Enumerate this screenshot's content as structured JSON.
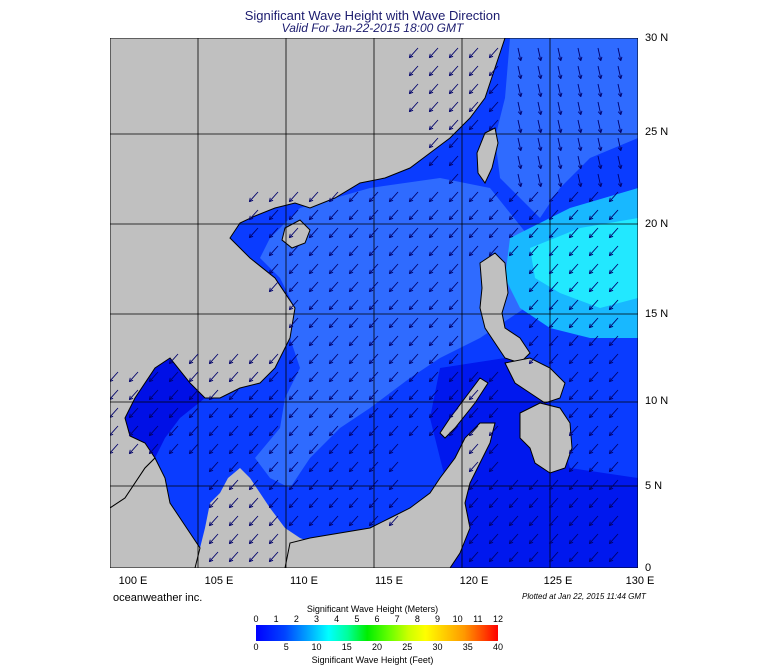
{
  "title": "Significant Wave Height with Wave Direction",
  "subtitle": "Valid For Jan-22-2015 18:00 GMT",
  "lat_labels": [
    "30 N",
    "25 N",
    "20 N",
    "15 N",
    "10 N",
    "5 N",
    "0"
  ],
  "lon_labels": [
    "100 E",
    "105 E",
    "110 E",
    "115 E",
    "120 E",
    "125 E",
    "130 E"
  ],
  "credit": "oceanweather inc.",
  "plotted": "Plotted at Jan 22, 2015 11:44 GMT",
  "colorbar": {
    "title_top": "Significant Wave Height (Meters)",
    "title_bottom": "Significant Wave Height (Feet)",
    "meters_ticks": [
      "0",
      "1",
      "2",
      "3",
      "4",
      "5",
      "6",
      "7",
      "8",
      "9",
      "10",
      "11",
      "12"
    ],
    "feet_ticks": [
      "0",
      "5",
      "10",
      "15",
      "20",
      "25",
      "30",
      "35",
      "40"
    ]
  },
  "colors": {
    "land": "#c0c0c0",
    "sea_low": "#0010ff",
    "sea_mid": "#0077ff",
    "sea_high": "#00e6ff",
    "arrow": "#00006a",
    "grid": "#000000",
    "coast": "#000000"
  }
}
